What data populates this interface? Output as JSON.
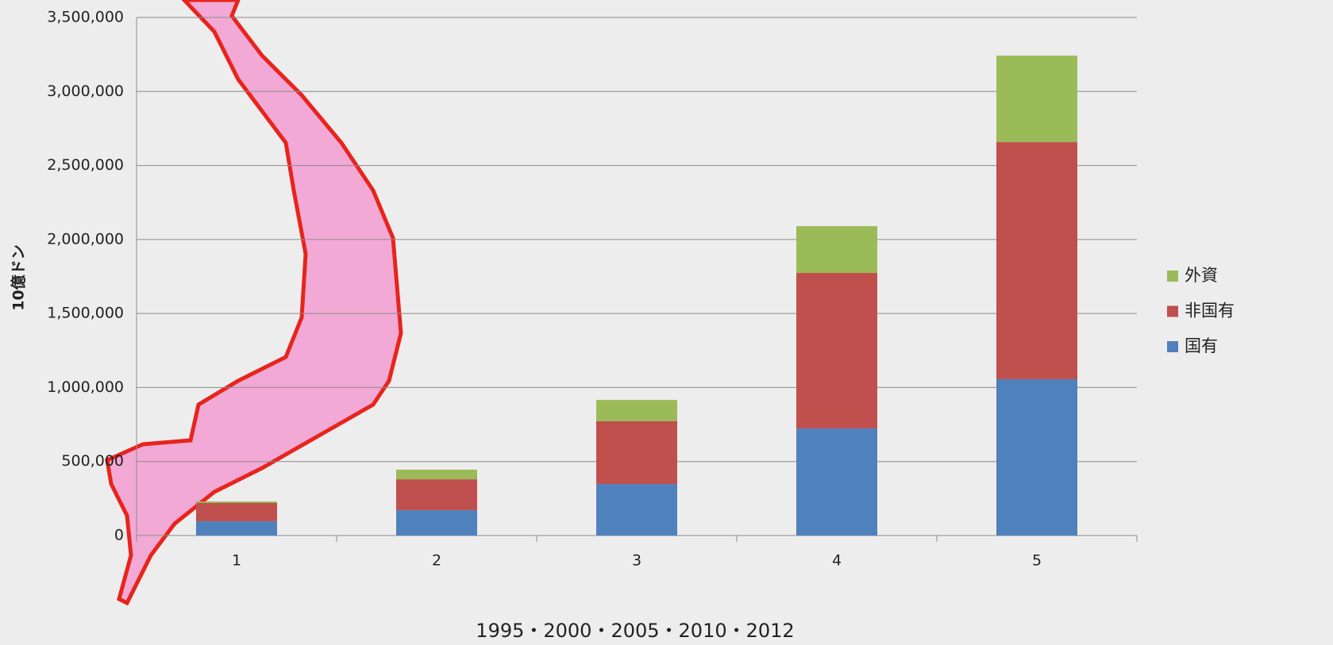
{
  "chart_data": {
    "type": "stacked_bar",
    "y_label": "10億ドン",
    "x_label": "1995・2000・2005・2010・2012",
    "categories": [
      "1",
      "2",
      "3",
      "4",
      "5"
    ],
    "series": [
      {
        "name": "国有",
        "color": "#4f81bd",
        "values": [
          96000,
          171000,
          348000,
          723000,
          1056000
        ]
      },
      {
        "name": "非国有",
        "color": "#c0504d",
        "values": [
          124000,
          209000,
          424000,
          1051000,
          1602000
        ]
      },
      {
        "name": "外資",
        "color": "#9bbb59",
        "values": [
          10000,
          65000,
          144000,
          316000,
          584000
        ]
      }
    ],
    "ylim": [
      0,
      3500000
    ],
    "yticks": [
      0,
      {
        "value": 500000,
        "label": "500,000"
      },
      {
        "value": 1000000,
        "label": "1,000,000"
      },
      {
        "value": 1500000,
        "label": "1,500,000"
      },
      {
        "value": 2000000,
        "label": "2,000,000"
      },
      {
        "value": 2500000,
        "label": "2,500,000"
      },
      {
        "value": 3000000,
        "label": "3,000,000"
      },
      {
        "value": 3500000,
        "label": "3,500,000"
      }
    ],
    "grid": true,
    "legend": "right"
  }
}
